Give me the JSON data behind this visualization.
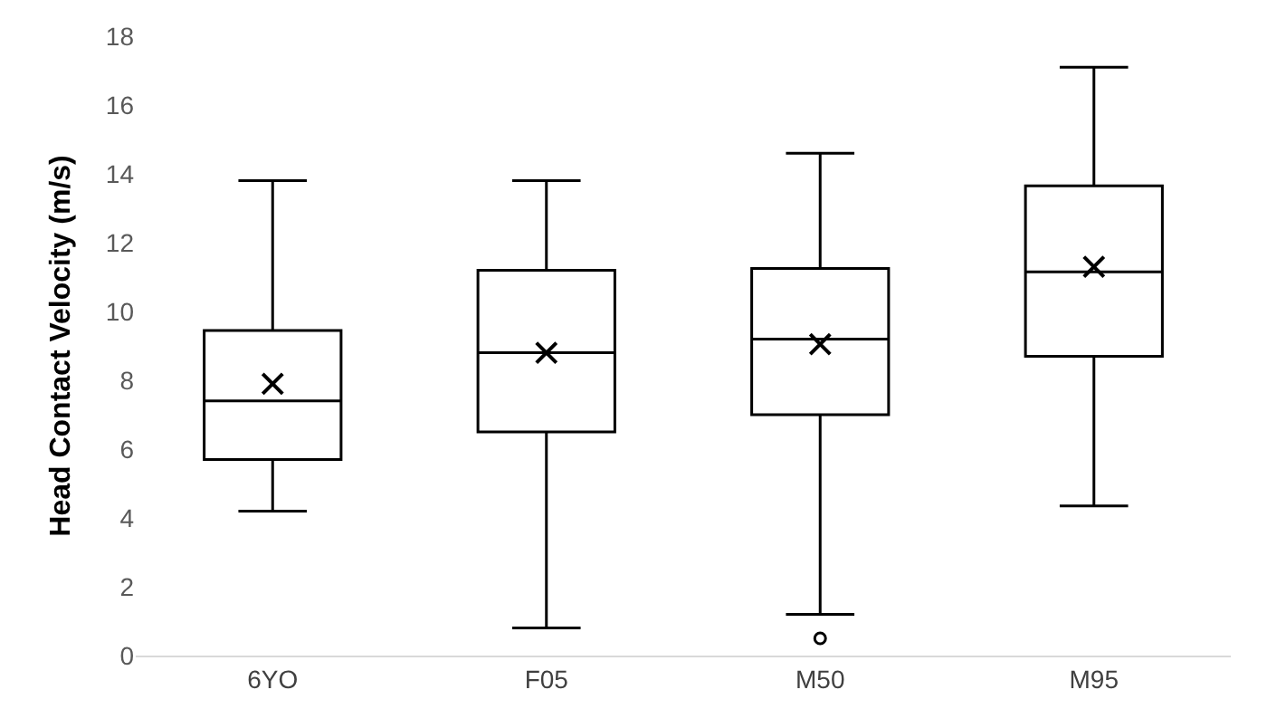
{
  "chart_data": {
    "type": "box",
    "ylabel": "Head Contact Velocity (m/s)",
    "categories": [
      "6YO",
      "F05",
      "M50",
      "M95"
    ],
    "boxes": [
      {
        "low": 4.2,
        "q1": 5.7,
        "median": 7.4,
        "q3": 9.45,
        "high": 13.8,
        "mean": 7.9
      },
      {
        "low": 0.8,
        "q1": 6.5,
        "median": 8.8,
        "q3": 11.2,
        "high": 13.8,
        "mean": 8.8
      },
      {
        "low": 1.2,
        "q1": 7.0,
        "median": 9.2,
        "q3": 11.25,
        "high": 14.6,
        "mean": 9.05,
        "outliers": [
          0.5
        ]
      },
      {
        "low": 4.35,
        "q1": 8.7,
        "median": 11.15,
        "q3": 13.65,
        "high": 17.1,
        "mean": 11.3
      }
    ],
    "color": "#000000",
    "ylim": [
      0,
      18
    ],
    "yticks": [
      0,
      2,
      4,
      6,
      8,
      10,
      12,
      14,
      16,
      18
    ]
  }
}
